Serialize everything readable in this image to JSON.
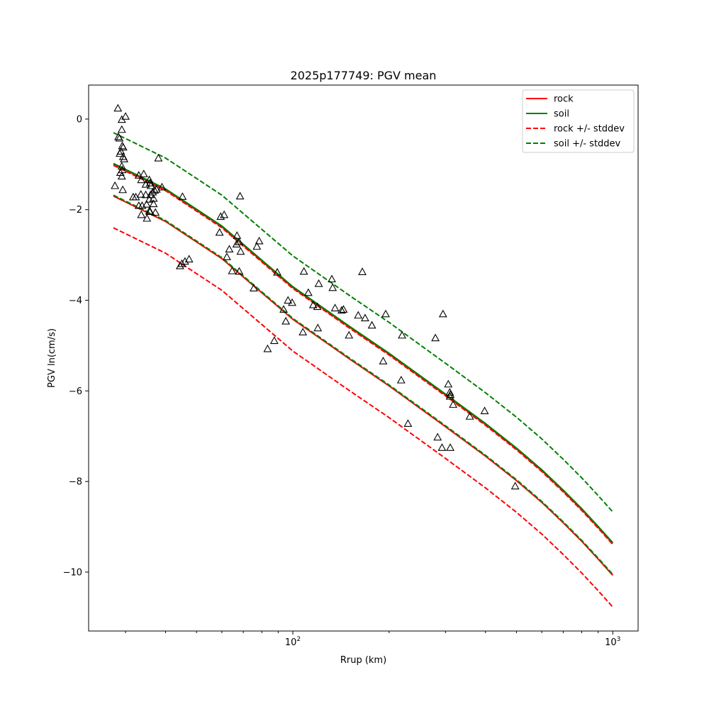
{
  "chart_data": {
    "type": "scatter",
    "title": "2025p177749: PGV mean",
    "xlabel": "Rrup (km)",
    "ylabel": "PGV ln(cm/s)",
    "x_scale": "log",
    "xlim": [
      23,
      1200
    ],
    "ylim": [
      -11.3,
      0.75
    ],
    "x_ticks": [
      {
        "value": 100,
        "base": "10",
        "exp": "2"
      },
      {
        "value": 1000,
        "base": "10",
        "exp": "3"
      }
    ],
    "y_ticks": [
      {
        "value": 0,
        "label": "0"
      },
      {
        "value": -2,
        "label": "−2"
      },
      {
        "value": -4,
        "label": "−4"
      },
      {
        "value": -6,
        "label": "−6"
      },
      {
        "value": -8,
        "label": "−8"
      },
      {
        "value": -10,
        "label": "−10"
      }
    ],
    "grid": false,
    "legend_position": "top-right",
    "legend": [
      {
        "label": "rock",
        "color": "#ff0000",
        "style": "solid"
      },
      {
        "label": "soil",
        "color": "#008000",
        "style": "solid"
      },
      {
        "label": "rock +/- stddev",
        "color": "#ff0000",
        "style": "dashed"
      },
      {
        "label": "soil +/- stddev",
        "color": "#008000",
        "style": "dashed"
      }
    ],
    "curves": [
      {
        "group": "rock",
        "style": "solid",
        "color": "#ff0000",
        "x": [
          27.5,
          30,
          40,
          60,
          100,
          150,
          200,
          300,
          400,
          500,
          600,
          700,
          800,
          900,
          1000
        ],
        "y": [
          -1.7,
          -1.83,
          -2.26,
          -3.08,
          -4.42,
          -5.29,
          -5.89,
          -6.79,
          -7.44,
          -7.98,
          -8.46,
          -8.91,
          -9.32,
          -9.71,
          -10.07
        ]
      },
      {
        "group": "rock",
        "style": "solid",
        "color": "#ff0000",
        "x": [
          27.5,
          30,
          40,
          60,
          100,
          150,
          200,
          300,
          400,
          500,
          600,
          700,
          800,
          900,
          1000
        ],
        "y": [
          -1.0,
          -1.13,
          -1.56,
          -2.38,
          -3.72,
          -4.59,
          -5.19,
          -6.09,
          -6.74,
          -7.28,
          -7.76,
          -8.21,
          -8.62,
          -9.01,
          -9.37
        ]
      },
      {
        "group": "soil",
        "style": "solid",
        "color": "#008000",
        "x": [
          27.5,
          30,
          40,
          60,
          100,
          150,
          200,
          300,
          400,
          500,
          600,
          700,
          800,
          900,
          1000
        ],
        "y": [
          -0.98,
          -1.11,
          -1.54,
          -2.36,
          -3.7,
          -4.57,
          -5.17,
          -6.07,
          -6.72,
          -7.26,
          -7.74,
          -8.19,
          -8.6,
          -8.99,
          -9.35
        ]
      },
      {
        "group": "rock +/- stddev",
        "style": "dashed",
        "color": "#ff0000",
        "x": [
          27.5,
          30,
          40,
          60,
          100,
          150,
          200,
          300,
          400,
          500,
          600,
          700,
          800,
          900,
          1000
        ],
        "y": [
          -2.4,
          -2.53,
          -2.96,
          -3.78,
          -5.12,
          -5.99,
          -6.59,
          -7.49,
          -8.14,
          -8.68,
          -9.16,
          -9.61,
          -10.02,
          -10.41,
          -10.77
        ]
      },
      {
        "group": "rock +/- stddev",
        "style": "dashed",
        "color": "#ff0000",
        "x": [
          27.5,
          30,
          40,
          60,
          100,
          150,
          200,
          300,
          400,
          500,
          600,
          700,
          800,
          900,
          1000
        ],
        "y": [
          -1.02,
          -1.15,
          -1.58,
          -2.4,
          -3.74,
          -4.61,
          -5.21,
          -6.11,
          -6.76,
          -7.3,
          -7.78,
          -8.23,
          -8.64,
          -9.03,
          -9.39
        ]
      },
      {
        "group": "soil +/- stddev",
        "style": "dashed",
        "color": "#008000",
        "x": [
          27.5,
          30,
          40,
          60,
          100,
          150,
          200,
          300,
          400,
          500,
          600,
          700,
          800,
          900,
          1000
        ],
        "y": [
          -0.3,
          -0.43,
          -0.86,
          -1.68,
          -3.02,
          -3.89,
          -4.49,
          -5.39,
          -6.04,
          -6.58,
          -7.06,
          -7.51,
          -7.92,
          -8.31,
          -8.67
        ]
      },
      {
        "group": "soil +/- stddev",
        "style": "dashed",
        "color": "#008000",
        "x": [
          27.5,
          30,
          40,
          60,
          100,
          150,
          200,
          300,
          400,
          500,
          600,
          700,
          800,
          900,
          1000
        ],
        "y": [
          -1.68,
          -1.81,
          -2.24,
          -3.06,
          -4.4,
          -5.27,
          -5.87,
          -6.77,
          -7.42,
          -7.96,
          -8.44,
          -8.89,
          -9.3,
          -9.69,
          -10.05
        ]
      }
    ],
    "observations": {
      "marker": "triangle",
      "points": [
        [
          28.4,
          0.23
        ],
        [
          30.0,
          0.05
        ],
        [
          29.2,
          -0.02
        ],
        [
          29.2,
          -0.24
        ],
        [
          28.5,
          -0.4
        ],
        [
          28.7,
          -0.43
        ],
        [
          29.3,
          -0.6
        ],
        [
          29.5,
          -0.63
        ],
        [
          29.0,
          -0.72
        ],
        [
          28.8,
          -0.77
        ],
        [
          29.5,
          -0.84
        ],
        [
          29.7,
          -0.89
        ],
        [
          38.0,
          -0.87
        ],
        [
          29.2,
          -1.05
        ],
        [
          29.3,
          -1.13
        ],
        [
          28.9,
          -1.19
        ],
        [
          29.2,
          -1.27
        ],
        [
          27.8,
          -1.48
        ],
        [
          29.4,
          -1.57
        ],
        [
          31.7,
          -1.73
        ],
        [
          32.3,
          -1.73
        ],
        [
          33.0,
          -1.25
        ],
        [
          34.2,
          -1.22
        ],
        [
          33.6,
          -1.35
        ],
        [
          34.7,
          -1.45
        ],
        [
          35.6,
          -1.35
        ],
        [
          35.8,
          -1.42
        ],
        [
          36.0,
          -1.48
        ],
        [
          37.0,
          -1.58
        ],
        [
          37.5,
          -1.56
        ],
        [
          39.0,
          -1.51
        ],
        [
          33.5,
          -1.67
        ],
        [
          34.7,
          -1.68
        ],
        [
          35.9,
          -1.68
        ],
        [
          36.5,
          -1.62
        ],
        [
          35.6,
          -1.78
        ],
        [
          36.7,
          -1.76
        ],
        [
          33.0,
          -1.92
        ],
        [
          33.8,
          -1.92
        ],
        [
          34.9,
          -1.89
        ],
        [
          36.7,
          -1.88
        ],
        [
          35.8,
          -2.05
        ],
        [
          37.2,
          -2.07
        ],
        [
          33.6,
          -2.12
        ],
        [
          35.0,
          -2.2
        ],
        [
          35.6,
          -2.04
        ],
        [
          45.2,
          -1.72
        ],
        [
          45.0,
          -3.2
        ],
        [
          46.0,
          -3.15
        ],
        [
          47.4,
          -3.1
        ],
        [
          44.4,
          -3.25
        ],
        [
          59.5,
          -2.16
        ],
        [
          61.0,
          -2.12
        ],
        [
          59.0,
          -2.51
        ],
        [
          68.4,
          -1.71
        ],
        [
          66.9,
          -2.58
        ],
        [
          67.9,
          -2.72
        ],
        [
          66.7,
          -2.77
        ],
        [
          68.7,
          -2.93
        ],
        [
          63.3,
          -2.88
        ],
        [
          62.2,
          -3.05
        ],
        [
          64.6,
          -3.36
        ],
        [
          68.0,
          -3.37
        ],
        [
          78.5,
          -2.7
        ],
        [
          77.2,
          -2.82
        ],
        [
          75.5,
          -3.74
        ],
        [
          89.4,
          -3.39
        ],
        [
          96.6,
          -4.01
        ],
        [
          99.5,
          -4.06
        ],
        [
          93.6,
          -4.21
        ],
        [
          95.1,
          -4.47
        ],
        [
          87.5,
          -4.9
        ],
        [
          83.4,
          -5.08
        ],
        [
          108.3,
          -3.37
        ],
        [
          111.8,
          -3.84
        ],
        [
          120.5,
          -3.64
        ],
        [
          132.4,
          -3.54
        ],
        [
          133.2,
          -3.73
        ],
        [
          115.8,
          -4.11
        ],
        [
          119.3,
          -4.15
        ],
        [
          135.5,
          -4.18
        ],
        [
          142.1,
          -4.23
        ],
        [
          144.0,
          -4.21
        ],
        [
          107.5,
          -4.71
        ],
        [
          119.7,
          -4.62
        ],
        [
          149.8,
          -4.78
        ],
        [
          160.1,
          -4.34
        ],
        [
          168.2,
          -4.4
        ],
        [
          176.7,
          -4.56
        ],
        [
          164.9,
          -3.38
        ],
        [
          195.1,
          -4.31
        ],
        [
          191.6,
          -5.35
        ],
        [
          219.5,
          -4.78
        ],
        [
          218.1,
          -5.77
        ],
        [
          229.0,
          -6.73
        ],
        [
          279.0,
          -4.84
        ],
        [
          294.7,
          -4.31
        ],
        [
          283.5,
          -7.03
        ],
        [
          292.6,
          -7.26
        ],
        [
          306.1,
          -5.86
        ],
        [
          309.4,
          -6.04
        ],
        [
          310.8,
          -6.09
        ],
        [
          309.7,
          -6.13
        ],
        [
          317.0,
          -6.31
        ],
        [
          310.5,
          -7.26
        ],
        [
          357.4,
          -6.57
        ],
        [
          397.6,
          -6.45
        ],
        [
          495.5,
          -8.11
        ]
      ]
    }
  }
}
